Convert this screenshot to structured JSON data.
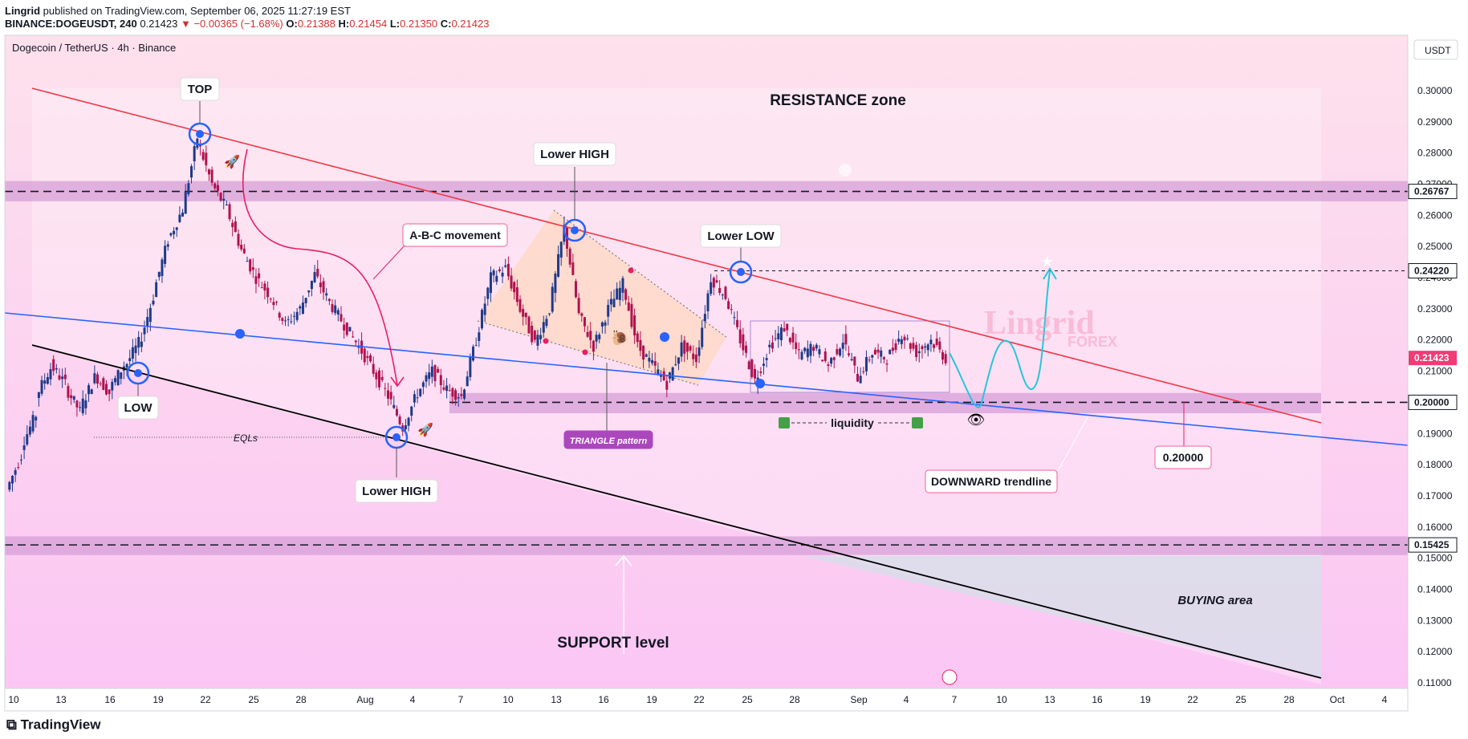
{
  "header": {
    "author": "Lingrid",
    "published_text": "published on TradingView.com, September 06, 2025 11:27:19 EST",
    "symbol": "BINANCE:DOGEUSDT, 240",
    "last": "0.21423",
    "arrow": "▼",
    "change": "−0.00365 (−1.68%)",
    "o_label": "O:",
    "o": "0.21388",
    "h_label": "H:",
    "h": "0.21454",
    "l_label": "L:",
    "l": "0.21350",
    "c_label": "C:",
    "c": "0.21423"
  },
  "chart_title": "Dogecoin / TetherUS · 4h · Binance",
  "currency_button": "USDT",
  "brand": "TradingView",
  "watermark": {
    "main": "Lingrid",
    "sub": "FOREX"
  },
  "colors": {
    "bg_top": "#fde0ec",
    "bg_bottom": "#fbc9f3",
    "zone": "#d49bd6",
    "resistance_line": "#f23645",
    "support_line": "#2962ff",
    "channel_bottom": "#000000",
    "price_label_bg": "#f23a76",
    "label_border": "#f06292",
    "triangle_label_bg": "#ab47bc",
    "projection": "#26c6da"
  },
  "chart_data": {
    "type": "candlestick",
    "symbol": "BINANCE:DOGEUSDT",
    "timeframe": "4h",
    "y_axis": {
      "min": 0.11,
      "max": 0.3,
      "tick_labels": [
        "0.30000",
        "0.29000",
        "0.28000",
        "0.27000",
        "0.26000",
        "0.25000",
        "0.24000",
        "0.23000",
        "0.22000",
        "0.21000",
        "0.20000",
        "0.19000",
        "0.18000",
        "0.17000",
        "0.16000",
        "0.15000",
        "0.14000",
        "0.13000",
        "0.12000",
        "0.11000"
      ]
    },
    "x_axis": {
      "tick_labels": [
        "10",
        "13",
        "16",
        "19",
        "22",
        "25",
        "28",
        "Aug",
        "4",
        "7",
        "10",
        "13",
        "16",
        "19",
        "22",
        "25",
        "28",
        "Sep",
        "4",
        "7",
        "10",
        "13",
        "16",
        "19",
        "22",
        "25",
        "28",
        "Oct",
        "4"
      ]
    },
    "price_levels": [
      {
        "value": 0.26767,
        "label": "0.26767"
      },
      {
        "value": 0.2422,
        "label": "0.24220"
      },
      {
        "value": 0.21423,
        "label": "0.21423",
        "current": true
      },
      {
        "value": 0.2,
        "label": "0.20000"
      },
      {
        "value": 0.15425,
        "label": "0.15425"
      }
    ],
    "zones": [
      {
        "name": "resistance",
        "from": 0.2645,
        "to": 0.271
      },
      {
        "name": "mid",
        "from": 0.1965,
        "to": 0.203
      },
      {
        "name": "support",
        "from": 0.151,
        "to": 0.157
      }
    ],
    "price_path": [
      [
        0.172,
        0.183
      ],
      [
        0.186,
        0.196
      ],
      [
        0.202,
        0.211
      ],
      [
        0.212,
        0.206
      ],
      [
        0.205,
        0.197
      ],
      [
        0.198,
        0.208
      ],
      [
        0.209,
        0.203
      ],
      [
        0.204,
        0.212
      ],
      [
        0.211,
        0.219
      ],
      [
        0.218,
        0.234
      ],
      [
        0.235,
        0.252
      ],
      [
        0.252,
        0.262
      ],
      [
        0.262,
        0.285
      ],
      [
        0.284,
        0.27
      ],
      [
        0.27,
        0.262
      ],
      [
        0.262,
        0.249
      ],
      [
        0.249,
        0.24
      ],
      [
        0.24,
        0.234
      ],
      [
        0.234,
        0.225
      ],
      [
        0.225,
        0.23
      ],
      [
        0.23,
        0.241
      ],
      [
        0.241,
        0.232
      ],
      [
        0.232,
        0.225
      ],
      [
        0.225,
        0.218
      ],
      [
        0.218,
        0.21
      ],
      [
        0.21,
        0.202
      ],
      [
        0.202,
        0.192
      ],
      [
        0.192,
        0.203
      ],
      [
        0.203,
        0.21
      ],
      [
        0.21,
        0.204
      ],
      [
        0.204,
        0.202
      ],
      [
        0.202,
        0.22
      ],
      [
        0.22,
        0.24
      ],
      [
        0.24,
        0.243
      ],
      [
        0.243,
        0.23
      ],
      [
        0.23,
        0.219
      ],
      [
        0.219,
        0.23
      ],
      [
        0.23,
        0.256
      ],
      [
        0.256,
        0.228
      ],
      [
        0.228,
        0.218
      ],
      [
        0.218,
        0.23
      ],
      [
        0.23,
        0.238
      ],
      [
        0.238,
        0.218
      ],
      [
        0.218,
        0.212
      ],
      [
        0.212,
        0.206
      ],
      [
        0.206,
        0.218
      ],
      [
        0.218,
        0.214
      ],
      [
        0.214,
        0.24
      ],
      [
        0.24,
        0.234
      ],
      [
        0.234,
        0.22
      ],
      [
        0.22,
        0.207
      ],
      [
        0.207,
        0.218
      ],
      [
        0.218,
        0.224
      ],
      [
        0.224,
        0.215
      ],
      [
        0.215,
        0.218
      ],
      [
        0.218,
        0.212
      ],
      [
        0.212,
        0.22
      ],
      [
        0.22,
        0.208
      ],
      [
        0.208,
        0.216
      ],
      [
        0.216,
        0.214
      ],
      [
        0.214,
        0.222
      ],
      [
        0.222,
        0.216
      ],
      [
        0.216,
        0.22
      ],
      [
        0.22,
        0.214
      ]
    ],
    "annotations": [
      {
        "text": "TOP",
        "style": "box"
      },
      {
        "text": "LOW",
        "style": "box"
      },
      {
        "text": "Lower HIGH",
        "style": "box"
      },
      {
        "text": "Lower HIGH",
        "style": "box"
      },
      {
        "text": "Lower LOW",
        "style": "box"
      },
      {
        "text": "A-B-C movement",
        "style": "box"
      },
      {
        "text": "TRIANGLE pattern",
        "style": "tag"
      },
      {
        "text": "EQLs",
        "style": "italic"
      },
      {
        "text": "liquidity",
        "style": "plain"
      },
      {
        "text": "RESISTANCE zone",
        "style": "big"
      },
      {
        "text": "SUPPORT level",
        "style": "big"
      },
      {
        "text": "BUYING area",
        "style": "italic"
      },
      {
        "text": "DOWNWARD trendline",
        "style": "box"
      },
      {
        "text": "0.20000",
        "style": "box"
      }
    ]
  }
}
